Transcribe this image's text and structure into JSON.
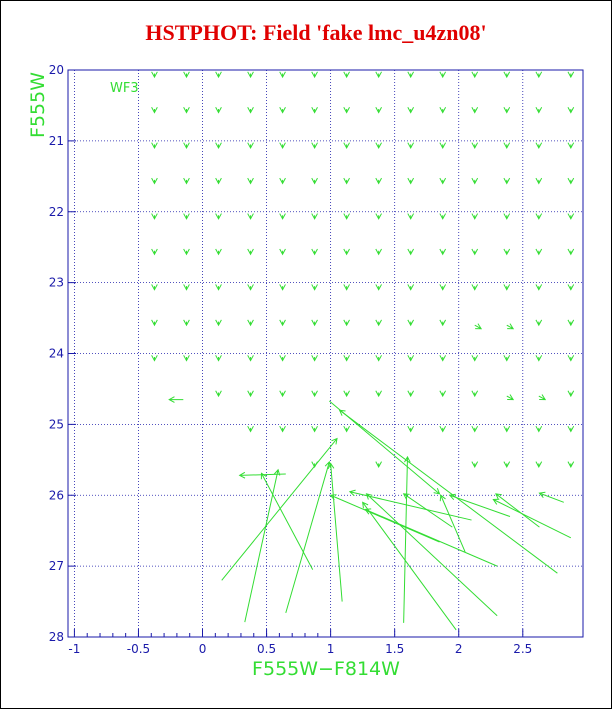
{
  "chart_data": {
    "type": "vector",
    "title": "HSTPHOT: Field 'fake lmc_u4zn08'",
    "annotation": "WF3",
    "x_label": "F555W−F814W",
    "y_label": "F555W",
    "xlim": [
      -1.05,
      2.97
    ],
    "ylim": [
      28,
      20
    ],
    "xticks": [
      -1,
      -0.5,
      0,
      0.5,
      1,
      1.5,
      2,
      2.5
    ],
    "yticks": [
      20,
      21,
      22,
      23,
      24,
      25,
      26,
      27,
      28
    ],
    "grid": true,
    "color": "#33dd33",
    "arrows": [
      [
        -0.375,
        20.05,
        -0.375,
        20.1
      ],
      [
        -0.125,
        20.05,
        -0.125,
        20.1
      ],
      [
        0.125,
        20.05,
        0.125,
        20.1
      ],
      [
        0.375,
        20.05,
        0.375,
        20.1
      ],
      [
        0.625,
        20.05,
        0.625,
        20.1
      ],
      [
        0.875,
        20.05,
        0.875,
        20.1
      ],
      [
        1.125,
        20.05,
        1.125,
        20.1
      ],
      [
        1.375,
        20.05,
        1.375,
        20.1
      ],
      [
        1.625,
        20.05,
        1.625,
        20.1
      ],
      [
        1.875,
        20.05,
        1.875,
        20.1
      ],
      [
        2.125,
        20.05,
        2.125,
        20.1
      ],
      [
        2.375,
        20.05,
        2.375,
        20.1
      ],
      [
        2.625,
        20.05,
        2.625,
        20.1
      ],
      [
        2.875,
        20.05,
        2.875,
        20.1
      ],
      [
        -0.375,
        20.55,
        -0.375,
        20.6
      ],
      [
        -0.125,
        20.55,
        -0.125,
        20.6
      ],
      [
        0.125,
        20.55,
        0.125,
        20.6
      ],
      [
        0.375,
        20.55,
        0.375,
        20.6
      ],
      [
        0.625,
        20.55,
        0.625,
        20.6
      ],
      [
        0.875,
        20.55,
        0.875,
        20.6
      ],
      [
        1.125,
        20.55,
        1.125,
        20.6
      ],
      [
        1.375,
        20.55,
        1.375,
        20.6
      ],
      [
        1.625,
        20.55,
        1.625,
        20.6
      ],
      [
        1.875,
        20.55,
        1.875,
        20.6
      ],
      [
        2.125,
        20.55,
        2.125,
        20.6
      ],
      [
        2.375,
        20.55,
        2.375,
        20.6
      ],
      [
        2.625,
        20.55,
        2.625,
        20.6
      ],
      [
        2.875,
        20.55,
        2.875,
        20.6
      ],
      [
        -0.375,
        21.05,
        -0.375,
        21.1
      ],
      [
        -0.125,
        21.05,
        -0.125,
        21.1
      ],
      [
        0.125,
        21.05,
        0.125,
        21.1
      ],
      [
        0.375,
        21.05,
        0.375,
        21.1
      ],
      [
        0.625,
        21.05,
        0.625,
        21.1
      ],
      [
        0.875,
        21.05,
        0.875,
        21.1
      ],
      [
        1.125,
        21.05,
        1.125,
        21.1
      ],
      [
        1.375,
        21.05,
        1.375,
        21.1
      ],
      [
        1.625,
        21.05,
        1.625,
        21.1
      ],
      [
        1.875,
        21.05,
        1.875,
        21.1
      ],
      [
        2.125,
        21.05,
        2.125,
        21.1
      ],
      [
        2.375,
        21.05,
        2.375,
        21.1
      ],
      [
        2.625,
        21.05,
        2.625,
        21.1
      ],
      [
        2.875,
        21.05,
        2.875,
        21.1
      ],
      [
        -0.375,
        21.55,
        -0.375,
        21.6
      ],
      [
        -0.125,
        21.55,
        -0.125,
        21.6
      ],
      [
        0.125,
        21.55,
        0.125,
        21.6
      ],
      [
        0.375,
        21.55,
        0.375,
        21.6
      ],
      [
        0.625,
        21.55,
        0.625,
        21.6
      ],
      [
        0.875,
        21.55,
        0.875,
        21.6
      ],
      [
        1.125,
        21.55,
        1.125,
        21.6
      ],
      [
        1.375,
        21.55,
        1.375,
        21.6
      ],
      [
        1.625,
        21.55,
        1.625,
        21.6
      ],
      [
        1.875,
        21.55,
        1.875,
        21.6
      ],
      [
        2.125,
        21.55,
        2.125,
        21.6
      ],
      [
        2.375,
        21.55,
        2.375,
        21.6
      ],
      [
        2.625,
        21.55,
        2.625,
        21.6
      ],
      [
        2.875,
        21.55,
        2.875,
        21.6
      ],
      [
        -0.375,
        22.05,
        -0.375,
        22.1
      ],
      [
        -0.125,
        22.05,
        -0.125,
        22.1
      ],
      [
        0.125,
        22.05,
        0.125,
        22.1
      ],
      [
        0.375,
        22.05,
        0.375,
        22.1
      ],
      [
        0.625,
        22.05,
        0.625,
        22.1
      ],
      [
        0.875,
        22.05,
        0.875,
        22.1
      ],
      [
        1.125,
        22.05,
        1.125,
        22.1
      ],
      [
        1.375,
        22.05,
        1.375,
        22.1
      ],
      [
        1.625,
        22.05,
        1.625,
        22.1
      ],
      [
        1.875,
        22.05,
        1.875,
        22.1
      ],
      [
        2.125,
        22.05,
        2.125,
        22.1
      ],
      [
        2.375,
        22.05,
        2.375,
        22.1
      ],
      [
        2.625,
        22.05,
        2.625,
        22.1
      ],
      [
        2.875,
        22.05,
        2.875,
        22.1
      ],
      [
        -0.375,
        22.55,
        -0.375,
        22.6
      ],
      [
        -0.125,
        22.55,
        -0.125,
        22.6
      ],
      [
        0.125,
        22.55,
        0.125,
        22.6
      ],
      [
        0.375,
        22.55,
        0.375,
        22.6
      ],
      [
        0.625,
        22.55,
        0.625,
        22.6
      ],
      [
        0.875,
        22.55,
        0.875,
        22.6
      ],
      [
        1.125,
        22.55,
        1.125,
        22.6
      ],
      [
        1.375,
        22.55,
        1.375,
        22.6
      ],
      [
        1.625,
        22.55,
        1.625,
        22.6
      ],
      [
        1.875,
        22.55,
        1.875,
        22.6
      ],
      [
        2.125,
        22.55,
        2.125,
        22.6
      ],
      [
        2.375,
        22.55,
        2.375,
        22.6
      ],
      [
        2.625,
        22.55,
        2.625,
        22.6
      ],
      [
        2.875,
        22.55,
        2.875,
        22.6
      ],
      [
        -0.375,
        23.05,
        -0.375,
        23.1
      ],
      [
        -0.125,
        23.05,
        -0.125,
        23.1
      ],
      [
        0.125,
        23.05,
        0.125,
        23.1
      ],
      [
        0.375,
        23.05,
        0.375,
        23.1
      ],
      [
        0.625,
        23.05,
        0.625,
        23.1
      ],
      [
        0.875,
        23.05,
        0.875,
        23.1
      ],
      [
        1.125,
        23.05,
        1.125,
        23.1
      ],
      [
        1.375,
        23.05,
        1.375,
        23.1
      ],
      [
        1.625,
        23.05,
        1.625,
        23.1
      ],
      [
        1.875,
        23.05,
        1.875,
        23.1
      ],
      [
        2.125,
        23.05,
        2.125,
        23.1
      ],
      [
        2.375,
        23.05,
        2.375,
        23.1
      ],
      [
        2.625,
        23.05,
        2.625,
        23.1
      ],
      [
        2.875,
        23.05,
        2.875,
        23.1
      ],
      [
        -0.375,
        23.55,
        -0.375,
        23.6
      ],
      [
        -0.125,
        23.55,
        -0.125,
        23.6
      ],
      [
        0.125,
        23.55,
        0.125,
        23.6
      ],
      [
        0.375,
        23.55,
        0.375,
        23.6
      ],
      [
        0.625,
        23.55,
        0.625,
        23.6
      ],
      [
        0.875,
        23.55,
        0.875,
        23.6
      ],
      [
        1.125,
        23.55,
        1.125,
        23.6
      ],
      [
        1.375,
        23.55,
        1.375,
        23.6
      ],
      [
        1.625,
        23.55,
        1.625,
        23.6
      ],
      [
        1.875,
        23.55,
        1.875,
        23.6
      ],
      [
        2.125,
        23.6,
        2.175,
        23.65
      ],
      [
        2.375,
        23.6,
        2.425,
        23.65
      ],
      [
        2.625,
        23.55,
        2.625,
        23.6
      ],
      [
        2.875,
        23.55,
        2.875,
        23.6
      ],
      [
        -0.375,
        24.05,
        -0.375,
        24.1
      ],
      [
        -0.125,
        24.05,
        -0.125,
        24.1
      ],
      [
        0.125,
        24.05,
        0.125,
        24.1
      ],
      [
        0.375,
        24.05,
        0.375,
        24.1
      ],
      [
        0.625,
        24.05,
        0.625,
        24.1
      ],
      [
        0.875,
        24.05,
        0.875,
        24.1
      ],
      [
        1.125,
        24.05,
        1.125,
        24.1
      ],
      [
        1.375,
        24.05,
        1.375,
        24.1
      ],
      [
        1.625,
        24.05,
        1.625,
        24.1
      ],
      [
        1.875,
        24.05,
        1.875,
        24.1
      ],
      [
        2.125,
        24.05,
        2.125,
        24.1
      ],
      [
        2.375,
        24.05,
        2.375,
        24.1
      ],
      [
        2.625,
        24.05,
        2.625,
        24.1
      ],
      [
        2.875,
        24.05,
        2.875,
        24.1
      ],
      [
        -0.15,
        24.65,
        -0.26,
        24.65
      ],
      [
        0.125,
        24.55,
        0.125,
        24.6
      ],
      [
        0.375,
        24.55,
        0.375,
        24.6
      ],
      [
        0.625,
        24.55,
        0.625,
        24.6
      ],
      [
        0.875,
        24.55,
        0.875,
        24.6
      ],
      [
        1.125,
        24.55,
        1.125,
        24.6
      ],
      [
        1.375,
        24.55,
        1.375,
        24.6
      ],
      [
        1.625,
        24.55,
        1.625,
        24.6
      ],
      [
        1.875,
        24.55,
        1.875,
        24.6
      ],
      [
        2.125,
        24.55,
        2.125,
        24.6
      ],
      [
        2.375,
        24.6,
        2.425,
        24.65
      ],
      [
        2.625,
        24.6,
        2.675,
        24.65
      ],
      [
        2.875,
        24.55,
        2.875,
        24.6
      ],
      [
        0.375,
        25.05,
        0.375,
        25.1
      ],
      [
        0.625,
        25.05,
        0.625,
        25.1
      ],
      [
        0.875,
        25.05,
        0.875,
        25.1
      ],
      [
        1.125,
        25.05,
        1.125,
        25.1
      ],
      [
        1.625,
        25.05,
        1.625,
        25.1
      ],
      [
        1.875,
        25.05,
        1.875,
        25.1
      ],
      [
        2.125,
        25.05,
        2.125,
        25.1
      ],
      [
        2.375,
        25.05,
        2.375,
        25.1
      ],
      [
        2.625,
        25.05,
        2.625,
        25.1
      ],
      [
        2.875,
        25.05,
        2.875,
        25.1
      ],
      [
        0.875,
        25.55,
        0.875,
        25.6
      ],
      [
        1.375,
        25.55,
        1.375,
        25.6
      ],
      [
        2.125,
        25.55,
        2.125,
        25.6
      ],
      [
        2.375,
        25.55,
        2.375,
        25.6
      ],
      [
        2.625,
        25.55,
        2.625,
        25.6
      ],
      [
        2.875,
        25.55,
        2.875,
        25.6
      ],
      [
        0.99,
        24.67,
        1.85,
        25.98
      ],
      [
        0.15,
        27.2,
        1.05,
        25.2
      ],
      [
        0.33,
        27.79,
        0.59,
        25.64
      ],
      [
        0.65,
        27.66,
        0.99,
        25.53
      ],
      [
        0.86,
        27.05,
        0.46,
        25.69
      ],
      [
        1.09,
        27.5,
        1.0,
        25.55
      ],
      [
        1.57,
        27.8,
        1.6,
        25.46
      ],
      [
        1.98,
        27.9,
        1.25,
        26.1
      ],
      [
        2.3,
        27.7,
        1.28,
        25.98
      ],
      [
        2.77,
        27.1,
        1.07,
        24.8
      ],
      [
        2.3,
        27.0,
        1.27,
        26.2
      ],
      [
        1.85,
        26.66,
        1.0,
        26.0
      ],
      [
        2.05,
        26.8,
        1.86,
        26.0
      ],
      [
        2.875,
        26.6,
        2.27,
        26.06
      ],
      [
        2.63,
        26.45,
        2.29,
        25.98
      ],
      [
        2.82,
        26.1,
        2.63,
        25.97
      ],
      [
        0.65,
        25.7,
        0.29,
        25.72
      ],
      [
        1.95,
        26.45,
        1.57,
        25.98
      ],
      [
        2.1,
        26.35,
        1.15,
        25.95
      ],
      [
        2.4,
        26.3,
        1.93,
        26.0
      ]
    ]
  }
}
